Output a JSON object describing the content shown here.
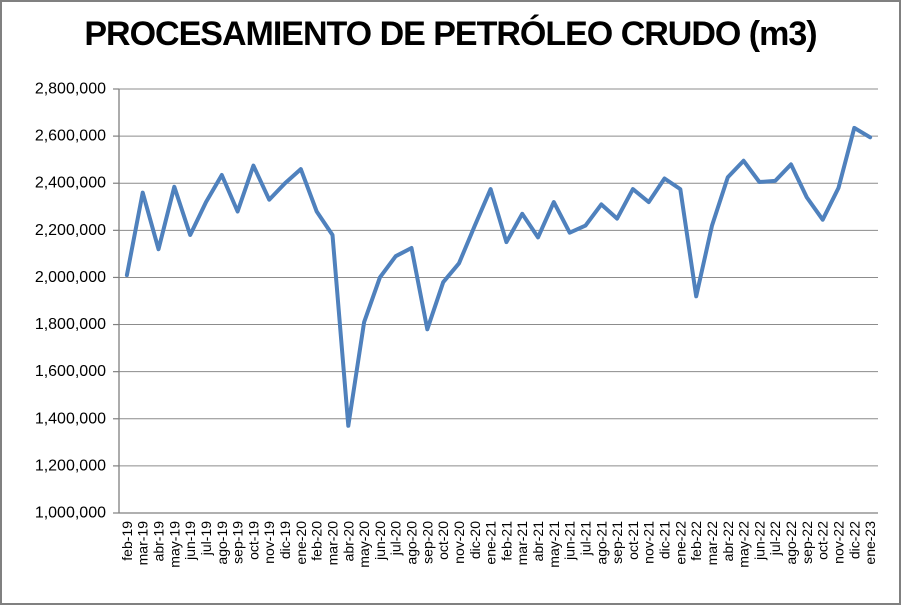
{
  "page": {
    "background": "#ffffff",
    "border_color": "#808080"
  },
  "chart_data": {
    "type": "line",
    "title": "PROCESAMIENTO DE PETRÓLEO CRUDO (m3)",
    "xlabel": "",
    "ylabel": "",
    "legend": "none",
    "grid": true,
    "x_label_rotation": -90,
    "ylim": [
      1000000,
      2800000
    ],
    "ytick_step": 200000,
    "ytick_labels": [
      "1,000,000",
      "1,200,000",
      "1,400,000",
      "1,600,000",
      "1,800,000",
      "2,000,000",
      "2,200,000",
      "2,400,000",
      "2,600,000",
      "2,800,000"
    ],
    "series_color": "#4F81BD",
    "grid_color": "#8C8C8C",
    "axis_color": "#808080",
    "text_color": "#000000",
    "categories": [
      "feb-19",
      "mar-19",
      "abr-19",
      "may-19",
      "jun-19",
      "jul-19",
      "ago-19",
      "sep-19",
      "oct-19",
      "nov-19",
      "dic-19",
      "ene-20",
      "feb-20",
      "mar-20",
      "abr-20",
      "may-20",
      "jun-20",
      "jul-20",
      "ago-20",
      "sep-20",
      "oct-20",
      "nov-20",
      "dic-20",
      "ene-21",
      "feb-21",
      "mar-21",
      "abr-21",
      "may-21",
      "jun-21",
      "jul-21",
      "ago-21",
      "sep-21",
      "oct-21",
      "nov-21",
      "dic-21",
      "ene-22",
      "feb-22",
      "mar-22",
      "abr-22",
      "may-22",
      "jun-22",
      "jul-22",
      "ago-22",
      "sep-22",
      "oct-22",
      "nov-22",
      "dic-22",
      "ene-23"
    ],
    "values": [
      2010000,
      2360000,
      2120000,
      2385000,
      2180000,
      2320000,
      2435000,
      2280000,
      2475000,
      2330000,
      2400000,
      2460000,
      2280000,
      2180000,
      1370000,
      1810000,
      2000000,
      2090000,
      2125000,
      1780000,
      1980000,
      2060000,
      2220000,
      2375000,
      2150000,
      2270000,
      2170000,
      2320000,
      2190000,
      2220000,
      2310000,
      2250000,
      2375000,
      2320000,
      2420000,
      2375000,
      1920000,
      2220000,
      2425000,
      2495000,
      2405000,
      2410000,
      2480000,
      2340000,
      2245000,
      2380000,
      2635000,
      2595000
    ]
  }
}
